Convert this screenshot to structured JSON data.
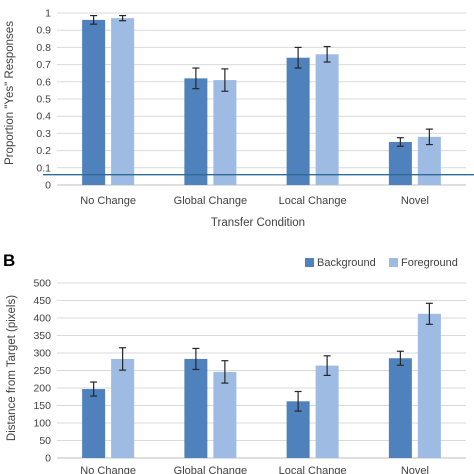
{
  "colors": {
    "background": "#4f81bd",
    "foreground": "#9dbbe3",
    "grid": "#d9d9d9",
    "chance_line": "#2e6b97",
    "error_bar": "#262626"
  },
  "chart_data": [
    {
      "panel": "",
      "type": "bar",
      "categories": [
        "No Change",
        "Global Change",
        "Local Change",
        "Novel"
      ],
      "series": [
        {
          "values": [
            0.96,
            0.62,
            0.74,
            0.25
          ],
          "errors": [
            0.025,
            0.06,
            0.06,
            0.025
          ]
        },
        {
          "values": [
            0.97,
            0.61,
            0.76,
            0.28
          ],
          "errors": [
            0.015,
            0.065,
            0.045,
            0.045
          ]
        }
      ],
      "reference_line": 0.06,
      "xlabel": "Transfer Condition",
      "ylabel": "Proportion \"Yes\" Responses",
      "ylim": [
        0,
        1
      ],
      "yticks": [
        "0",
        "0.1",
        "0.2",
        "0.3",
        "0.4",
        "0.5",
        "0.6",
        "0.7",
        "0.8",
        "0.9",
        "1"
      ],
      "grid": true
    },
    {
      "panel": "B",
      "type": "bar",
      "categories": [
        "No Change",
        "Global Change",
        "Local Change",
        "Novel"
      ],
      "series": [
        {
          "name": "Background",
          "values": [
            197,
            283,
            162,
            285
          ],
          "errors": [
            20,
            30,
            28,
            20
          ]
        },
        {
          "name": "Foreground",
          "values": [
            283,
            246,
            264,
            412
          ],
          "errors": [
            32,
            32,
            28,
            30
          ]
        }
      ],
      "xlabel": "",
      "ylabel": "Distance from Target (pixels)",
      "ylim": [
        0,
        500
      ],
      "yticks": [
        "0",
        "50",
        "100",
        "150",
        "200",
        "250",
        "300",
        "350",
        "400",
        "450",
        "500"
      ],
      "grid": true,
      "legend": "top-right"
    }
  ]
}
